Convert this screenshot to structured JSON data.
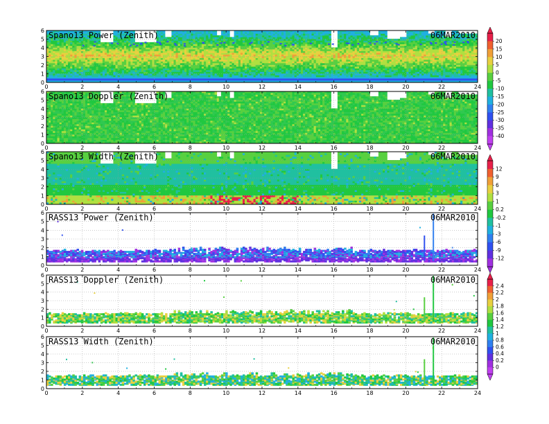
{
  "chart_data": [
    {
      "type": "heatmap",
      "title": "Spano13 Power (Zenith)",
      "date": "06MAR2010",
      "xlim": [
        0,
        24
      ],
      "ylim": [
        0,
        6
      ],
      "colorbar_group": 0,
      "x_ticks": [
        "0",
        "2",
        "4",
        "6",
        "8",
        "10",
        "12",
        "14",
        "16",
        "18",
        "20",
        "22",
        "24"
      ],
      "y_ticks": [
        "0",
        "1",
        "2",
        "3",
        "4",
        "5",
        "6"
      ]
    },
    {
      "type": "heatmap",
      "title": "Spano13 Doppler (Zenith)",
      "date": "06MAR2010",
      "xlim": [
        0,
        24
      ],
      "ylim": [
        0,
        6
      ],
      "colorbar_group": 0,
      "x_ticks": [
        "0",
        "2",
        "4",
        "6",
        "8",
        "10",
        "12",
        "14",
        "16",
        "18",
        "20",
        "22",
        "24"
      ],
      "y_ticks": [
        "0",
        "1",
        "2",
        "3",
        "4",
        "5",
        "6"
      ]
    },
    {
      "type": "heatmap",
      "title": "Spano13 Width (Zenith)",
      "date": "06MAR2010",
      "xlim": [
        0,
        24
      ],
      "ylim": [
        0,
        6
      ],
      "colorbar_group": 1,
      "x_ticks": [
        "0",
        "2",
        "4",
        "6",
        "8",
        "10",
        "12",
        "14",
        "16",
        "18",
        "20",
        "22",
        "24"
      ],
      "y_ticks": [
        "0",
        "1",
        "2",
        "3",
        "4",
        "5",
        "6"
      ]
    },
    {
      "type": "heatmap",
      "title": "RASS13 Power (Zenith)",
      "date": "06MAR2010",
      "xlim": [
        0,
        24
      ],
      "ylim": [
        0,
        6
      ],
      "colorbar_group": 1,
      "x_ticks": [
        "0",
        "2",
        "4",
        "6",
        "8",
        "10",
        "12",
        "14",
        "16",
        "18",
        "20",
        "22",
        "24"
      ],
      "y_ticks": [
        "0",
        "1",
        "2",
        "3",
        "4",
        "5",
        "6"
      ]
    },
    {
      "type": "heatmap",
      "title": "RASS13 Doppler (Zenith)",
      "date": "06MAR2010",
      "xlim": [
        0,
        24
      ],
      "ylim": [
        0,
        6
      ],
      "colorbar_group": 2,
      "x_ticks": [
        "0",
        "2",
        "4",
        "6",
        "8",
        "10",
        "12",
        "14",
        "16",
        "18",
        "20",
        "22",
        "24"
      ],
      "y_ticks": [
        "0",
        "1",
        "2",
        "3",
        "4",
        "5",
        "6"
      ]
    },
    {
      "type": "heatmap",
      "title": "RASS13 Width (Zenith)",
      "date": "06MAR2010",
      "xlim": [
        0,
        24
      ],
      "ylim": [
        0,
        6
      ],
      "colorbar_group": 2,
      "x_ticks": [
        "0",
        "2",
        "4",
        "6",
        "8",
        "10",
        "12",
        "14",
        "16",
        "18",
        "20",
        "22",
        "24"
      ],
      "y_ticks": [
        "0",
        "1",
        "2",
        "3",
        "4",
        "5",
        "6"
      ]
    }
  ],
  "colorbars": [
    {
      "labels": [
        "20",
        "15",
        "10",
        "5",
        "0",
        "-5",
        "-10",
        "-15",
        "-20",
        "-25",
        "-30",
        "-35",
        "-40"
      ],
      "colors": [
        "#e8204a",
        "#f06030",
        "#f0a038",
        "#e8d040",
        "#b0e040",
        "#58d040",
        "#20c840",
        "#20c0a0",
        "#20b0e0",
        "#3080f0",
        "#3050f0",
        "#6030e0",
        "#a030e0",
        "#c040f0"
      ]
    },
    {
      "labels": [
        "12",
        "9",
        "6",
        "3",
        "1",
        "0.2",
        "-0.2",
        "-1",
        "-3",
        "-6",
        "-9",
        "-12"
      ],
      "colors": [
        "#e8204a",
        "#f06030",
        "#f0a038",
        "#e8d040",
        "#b0e040",
        "#58d040",
        "#20c840",
        "#20c0a0",
        "#20b0e0",
        "#3080f0",
        "#3050f0",
        "#6030e0",
        "#a030e0"
      ]
    },
    {
      "labels": [
        "2.4",
        "2.2",
        "2",
        "1.8",
        "1.6",
        "1.4",
        "1.2",
        "1",
        "0.8",
        "0.6",
        "0.4",
        "0.2",
        "0"
      ],
      "colors": [
        "#e8204a",
        "#f06030",
        "#f0a038",
        "#e8d040",
        "#b0e040",
        "#58d040",
        "#20c840",
        "#20c0a0",
        "#20b0e0",
        "#3080f0",
        "#3050f0",
        "#6030e0",
        "#a030e0",
        "#c040f0"
      ]
    }
  ],
  "colors": {
    "spano_power": [
      "#20b0e0",
      "#20c0a0",
      "#20c840",
      "#58d040",
      "#b0e040",
      "#e8d040",
      "#f0a038"
    ],
    "spano_doppler": [
      "#20c840",
      "#30c850",
      "#58d040",
      "#20c0a0"
    ],
    "spano_width": [
      "#20c0a0",
      "#20b0e0",
      "#20c840",
      "#58d040",
      "#b0e040",
      "#f0a038",
      "#e8204a"
    ],
    "rass_power": [
      "#6030e0",
      "#a030e0",
      "#3050f0",
      "#3080f0",
      "#20b0e0"
    ],
    "rass_doppler": [
      "#20c840",
      "#58d040",
      "#b0e040",
      "#e8d040",
      "#20c0a0"
    ],
    "rass_width": [
      "#20c840",
      "#58d040",
      "#20c0a0",
      "#20b0e0",
      "#e8d040"
    ]
  }
}
